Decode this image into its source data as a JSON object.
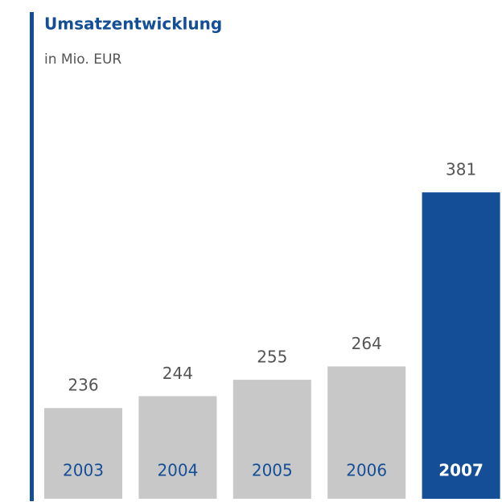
{
  "chart_data": {
    "type": "bar",
    "title": "Umsatzentwicklung",
    "subtitle": "in Mio. EUR",
    "categories": [
      "2003",
      "2004",
      "2005",
      "2006",
      "2007"
    ],
    "values": [
      236,
      244,
      255,
      264,
      381
    ],
    "colors": [
      "#c8c8c9",
      "#c8c8c9",
      "#c8c8c9",
      "#c8c8c9",
      "#134e96"
    ],
    "ylim": [
      175,
      400
    ]
  }
}
